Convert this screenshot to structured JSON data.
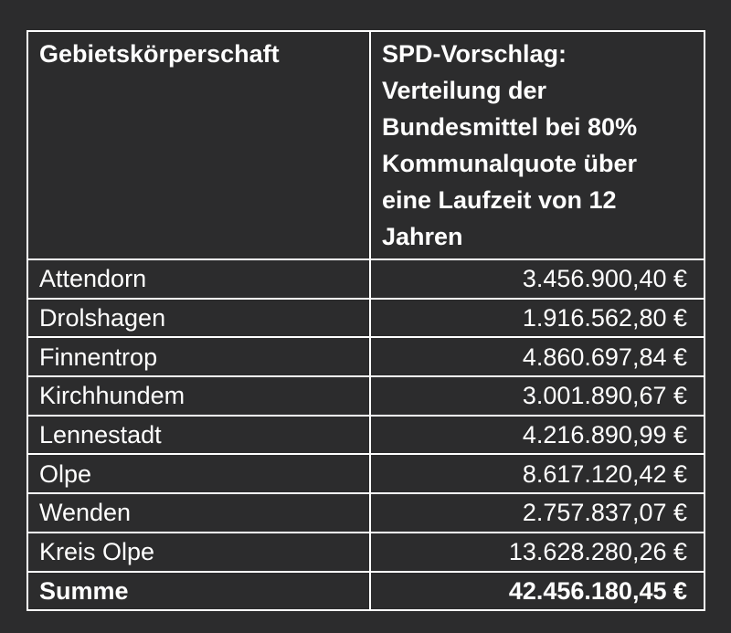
{
  "table": {
    "header": [
      "Gebietskörperschaft",
      "SPD-Vorschlag: Verteilung der Bundesmittel bei 80% Kommunalquote über eine Laufzeit von 12 Jahren"
    ],
    "rows": [
      [
        "Attendorn",
        "3.456.900,40 €"
      ],
      [
        "Drolshagen",
        "1.916.562,80 €"
      ],
      [
        "Finnentrop",
        "4.860.697,84 €"
      ],
      [
        "Kirchhundem",
        "3.001.890,67 €"
      ],
      [
        "Lennestadt",
        "4.216.890,99 €"
      ],
      [
        "Olpe",
        "8.617.120,42 €"
      ],
      [
        "Wenden",
        "2.757.837,07 €"
      ],
      [
        "Kreis Olpe",
        "13.628.280,26 €"
      ]
    ],
    "footer": [
      "Summe",
      "42.456.180,45 €"
    ]
  }
}
